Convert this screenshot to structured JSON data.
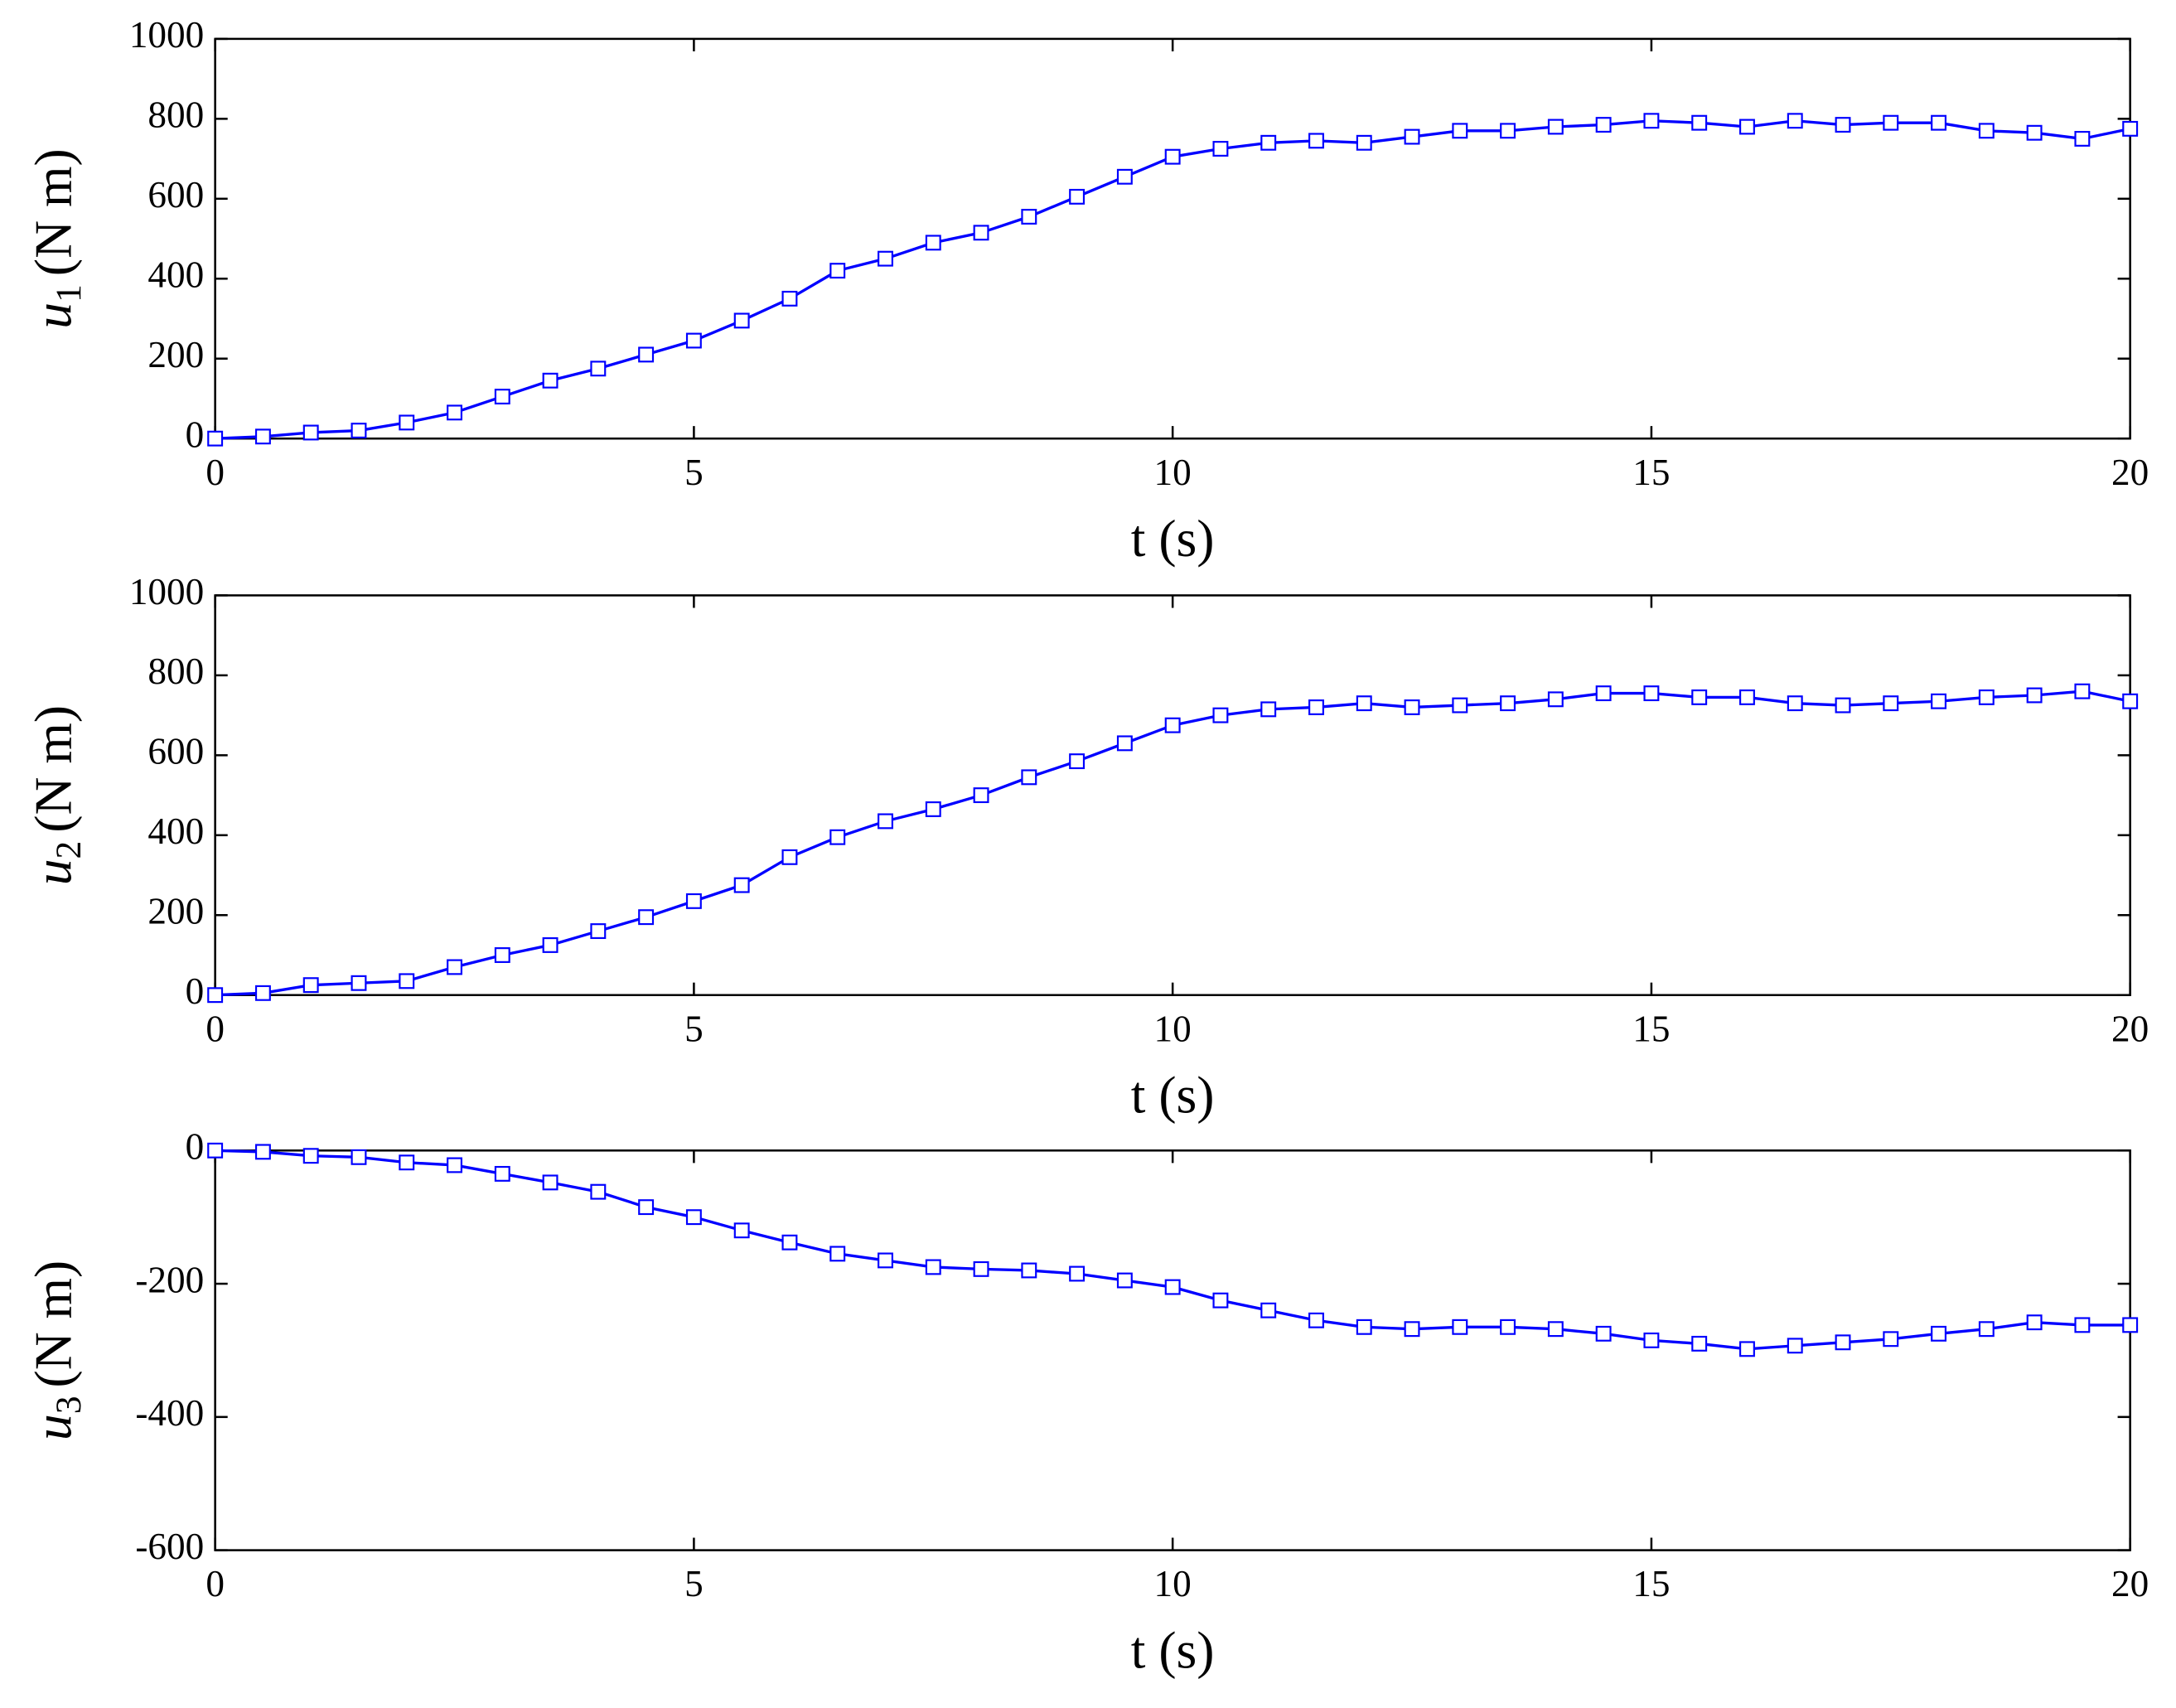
{
  "chart_data": [
    {
      "type": "line",
      "ylabel": {
        "symbol": "u",
        "subscript": "1",
        "unit": "(N m)"
      },
      "xlabel": "t (s)",
      "color": "#0000ff",
      "marker": "square",
      "x": [
        0,
        0.5,
        1,
        1.5,
        2,
        2.5,
        3,
        3.5,
        4,
        4.5,
        5,
        5.5,
        6,
        6.5,
        7,
        7.5,
        8,
        8.5,
        9,
        9.5,
        10,
        10.5,
        11,
        11.5,
        12,
        12.5,
        13,
        13.5,
        14,
        14.5,
        15,
        15.5,
        16,
        16.5,
        17,
        17.5,
        18,
        18.5,
        19,
        19.5,
        20
      ],
      "values": [
        0,
        5,
        15,
        20,
        40,
        65,
        105,
        145,
        175,
        210,
        245,
        295,
        350,
        420,
        450,
        490,
        515,
        555,
        605,
        655,
        705,
        725,
        740,
        745,
        740,
        755,
        770,
        770,
        780,
        785,
        795,
        790,
        780,
        795,
        785,
        790,
        790,
        770,
        765,
        750,
        775
      ],
      "xlim": [
        0,
        20
      ],
      "xticks": [
        0,
        5,
        10,
        15,
        20
      ],
      "ylim": [
        0,
        1000
      ],
      "yticks": [
        0,
        200,
        400,
        600,
        800,
        1000
      ]
    },
    {
      "type": "line",
      "ylabel": {
        "symbol": "u",
        "subscript": "2",
        "unit": "(N m)"
      },
      "xlabel": "t (s)",
      "color": "#0000ff",
      "marker": "square",
      "x": [
        0,
        0.5,
        1,
        1.5,
        2,
        2.5,
        3,
        3.5,
        4,
        4.5,
        5,
        5.5,
        6,
        6.5,
        7,
        7.5,
        8,
        8.5,
        9,
        9.5,
        10,
        10.5,
        11,
        11.5,
        12,
        12.5,
        13,
        13.5,
        14,
        14.5,
        15,
        15.5,
        16,
        16.5,
        17,
        17.5,
        18,
        18.5,
        19,
        19.5,
        20
      ],
      "values": [
        0,
        5,
        25,
        30,
        35,
        70,
        100,
        125,
        160,
        195,
        235,
        275,
        345,
        395,
        435,
        465,
        500,
        545,
        585,
        630,
        675,
        700,
        715,
        720,
        730,
        720,
        725,
        730,
        740,
        755,
        755,
        745,
        745,
        730,
        725,
        730,
        735,
        745,
        750,
        760,
        735
      ],
      "xlim": [
        0,
        20
      ],
      "xticks": [
        0,
        5,
        10,
        15,
        20
      ],
      "ylim": [
        0,
        1000
      ],
      "yticks": [
        0,
        200,
        400,
        600,
        800,
        1000
      ]
    },
    {
      "type": "line",
      "ylabel": {
        "symbol": "u",
        "subscript": "3",
        "unit": "(N m)"
      },
      "xlabel": "t (s)",
      "color": "#0000ff",
      "marker": "square",
      "x": [
        0,
        0.5,
        1,
        1.5,
        2,
        2.5,
        3,
        3.5,
        4,
        4.5,
        5,
        5.5,
        6,
        6.5,
        7,
        7.5,
        8,
        8.5,
        9,
        9.5,
        10,
        10.5,
        11,
        11.5,
        12,
        12.5,
        13,
        13.5,
        14,
        14.5,
        15,
        15.5,
        16,
        16.5,
        17,
        17.5,
        18,
        18.5,
        19,
        19.5,
        20
      ],
      "values": [
        0,
        -2,
        -8,
        -10,
        -18,
        -22,
        -35,
        -48,
        -62,
        -85,
        -100,
        -120,
        -138,
        -155,
        -165,
        -175,
        -178,
        -180,
        -185,
        -195,
        -205,
        -225,
        -240,
        -255,
        -265,
        -268,
        -265,
        -265,
        -268,
        -275,
        -285,
        -290,
        -298,
        -293,
        -288,
        -283,
        -275,
        -268,
        -258,
        -262,
        -262
      ],
      "xlim": [
        0,
        20
      ],
      "xticks": [
        0,
        5,
        10,
        15,
        20
      ],
      "ylim": [
        -600,
        0
      ],
      "yticks": [
        -600,
        -400,
        -200,
        0
      ]
    }
  ]
}
